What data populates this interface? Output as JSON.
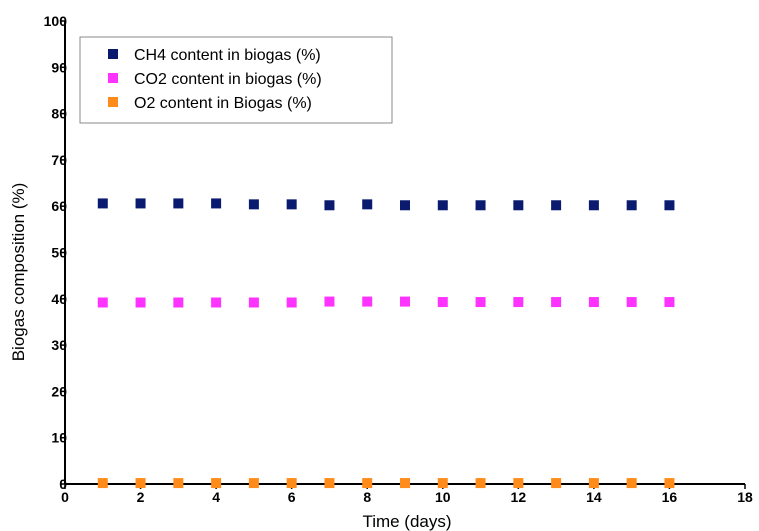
{
  "chart_data": {
    "type": "scatter",
    "title": "",
    "xlabel": "Time (days)",
    "ylabel": "Biogas composition  (%)",
    "xlim": [
      0,
      18
    ],
    "ylim": [
      0,
      100
    ],
    "xticks": [
      "0",
      "2",
      "4",
      "6",
      "8",
      "10",
      "12",
      "14",
      "16",
      "18"
    ],
    "yticks": [
      "0",
      "10",
      "20",
      "30",
      "40",
      "50",
      "60",
      "70",
      "80",
      "90",
      "100"
    ],
    "grid": false,
    "legend_position": "top-left",
    "x": [
      1,
      2,
      3,
      4,
      5,
      6,
      7,
      8,
      9,
      10,
      11,
      12,
      13,
      14,
      15,
      16
    ],
    "series": [
      {
        "name": "CH4 content in biogas (%)",
        "color": "#0a1a6e",
        "marker": "square",
        "values": [
          60.6,
          60.6,
          60.6,
          60.6,
          60.4,
          60.4,
          60.2,
          60.4,
          60.2,
          60.2,
          60.2,
          60.2,
          60.2,
          60.2,
          60.2,
          60.2
        ]
      },
      {
        "name": "CO2 content in biogas (%)",
        "color": "#ff33ff",
        "marker": "square",
        "values": [
          39.2,
          39.2,
          39.2,
          39.2,
          39.2,
          39.2,
          39.4,
          39.4,
          39.4,
          39.3,
          39.3,
          39.3,
          39.3,
          39.3,
          39.3,
          39.3
        ]
      },
      {
        "name": "O2 content in Biogas (%)",
        "color": "#ff8c1a",
        "marker": "square",
        "values": [
          0.2,
          0.2,
          0.2,
          0.2,
          0.2,
          0.2,
          0.2,
          0.2,
          0.2,
          0.2,
          0.2,
          0.2,
          0.2,
          0.2,
          0.2,
          0.2
        ]
      }
    ]
  }
}
